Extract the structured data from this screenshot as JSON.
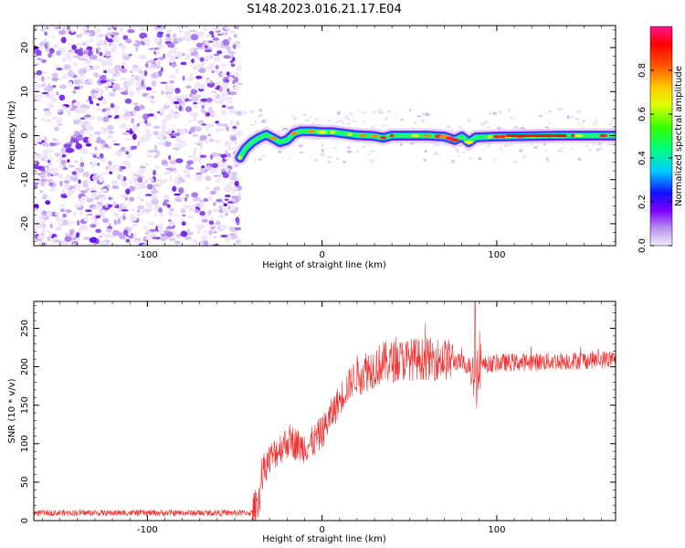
{
  "title": "S148.2023.016.21.17.E04",
  "chart_data": [
    {
      "type": "heatmap",
      "xlabel": "Height of straight line (km)",
      "ylabel": "Frequency (Hz)",
      "xlim": [
        -165,
        168
      ],
      "ylim": [
        -25,
        25
      ],
      "x_ticks": [
        -100,
        0,
        100
      ],
      "y_ticks": [
        -20,
        -10,
        0,
        10,
        20
      ],
      "colorbar": {
        "label": "Normalized spectral amplitude",
        "range": [
          0,
          1
        ],
        "ticks": [
          "0.0",
          "0.2",
          "0.4",
          "0.6",
          "0.8"
        ],
        "colors": [
          "#ffffff",
          "#e6d5f7",
          "#7f00ff",
          "#0000ff",
          "#00ffff",
          "#00ff00",
          "#ffff00",
          "#ff8800",
          "#ff0000",
          "#ff0080"
        ]
      },
      "noise_region_x": [
        -165,
        -47
      ],
      "signal_track": [
        {
          "x": -47,
          "y": -5.0
        },
        {
          "x": -44,
          "y": -3.0
        },
        {
          "x": -40,
          "y": -1.5
        },
        {
          "x": -36,
          "y": -0.5
        },
        {
          "x": -32,
          "y": 0.2
        },
        {
          "x": -28,
          "y": -0.6
        },
        {
          "x": -24,
          "y": -1.5
        },
        {
          "x": -20,
          "y": -1.0
        },
        {
          "x": -16,
          "y": 0.5
        },
        {
          "x": -12,
          "y": 1.0
        },
        {
          "x": -6,
          "y": 1.0
        },
        {
          "x": 0,
          "y": 0.8
        },
        {
          "x": 6,
          "y": 0.8
        },
        {
          "x": 12,
          "y": 0.5
        },
        {
          "x": 20,
          "y": 0.1
        },
        {
          "x": 30,
          "y": -0.1
        },
        {
          "x": 35,
          "y": -0.5
        },
        {
          "x": 40,
          "y": 0.0
        },
        {
          "x": 50,
          "y": 0.0
        },
        {
          "x": 60,
          "y": 0.0
        },
        {
          "x": 70,
          "y": -0.2
        },
        {
          "x": 76,
          "y": -1.0
        },
        {
          "x": 80,
          "y": -0.2
        },
        {
          "x": 84,
          "y": -1.5
        },
        {
          "x": 88,
          "y": -0.4
        },
        {
          "x": 100,
          "y": -0.2
        },
        {
          "x": 120,
          "y": -0.1
        },
        {
          "x": 140,
          "y": 0.0
        },
        {
          "x": 168,
          "y": 0.0
        }
      ]
    },
    {
      "type": "line",
      "xlabel": "Height of straight line (km)",
      "ylabel": "SNR (10 * v/v)",
      "xlim": [
        -165,
        168
      ],
      "ylim": [
        0,
        285
      ],
      "x_ticks": [
        -100,
        0,
        100
      ],
      "y_ticks": [
        0,
        50,
        100,
        150,
        200,
        250
      ],
      "series": [
        {
          "color": "#ee3333",
          "trend": [
            {
              "x": -165,
              "y": 10
            },
            {
              "x": -40,
              "y": 10
            },
            {
              "x": -36,
              "y": 30
            },
            {
              "x": -33,
              "y": 70
            },
            {
              "x": -28,
              "y": 85
            },
            {
              "x": -24,
              "y": 95
            },
            {
              "x": -18,
              "y": 105
            },
            {
              "x": -12,
              "y": 95
            },
            {
              "x": -6,
              "y": 100
            },
            {
              "x": 0,
              "y": 115
            },
            {
              "x": 6,
              "y": 140
            },
            {
              "x": 12,
              "y": 165
            },
            {
              "x": 18,
              "y": 185
            },
            {
              "x": 25,
              "y": 195
            },
            {
              "x": 35,
              "y": 205
            },
            {
              "x": 50,
              "y": 210
            },
            {
              "x": 70,
              "y": 210
            },
            {
              "x": 80,
              "y": 205
            },
            {
              "x": 86,
              "y": 200
            },
            {
              "x": 100,
              "y": 205
            },
            {
              "x": 130,
              "y": 207
            },
            {
              "x": 168,
              "y": 210
            }
          ],
          "features": [
            {
              "x": 87.5,
              "y": 285,
              "label": "peak"
            },
            {
              "x": 88.5,
              "y": 160,
              "label": "dip"
            }
          ]
        }
      ]
    }
  ]
}
